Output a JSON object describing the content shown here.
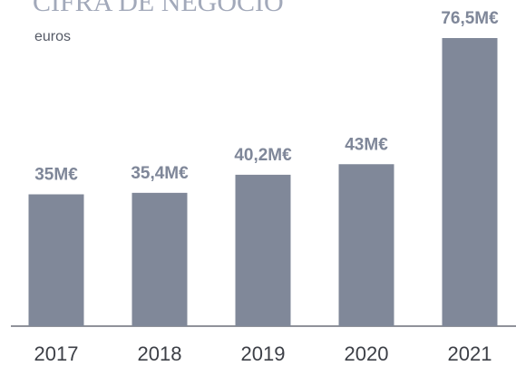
{
  "chart_data": {
    "type": "bar",
    "title": "CIFRA DE NEGOCIO",
    "subtitle": "euros",
    "categories": [
      "2017",
      "2018",
      "2019",
      "2020",
      "2021"
    ],
    "values": [
      35,
      35.4,
      40.2,
      43,
      76.5
    ],
    "value_labels": [
      "35M€",
      "35,4M€",
      "40,2M€",
      "43M€",
      "76,5M€"
    ],
    "color": "#808899"
  }
}
